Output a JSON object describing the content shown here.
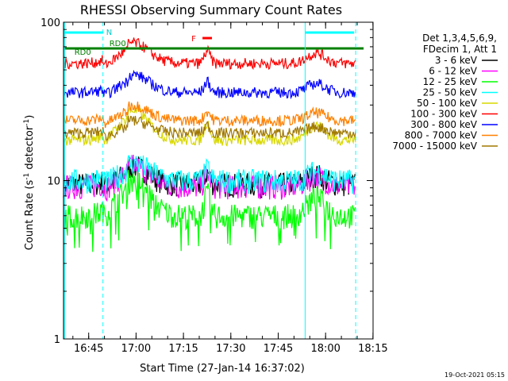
{
  "chart_data": {
    "type": "line",
    "title": "RHESSI Observing Summary Count Rates",
    "xlabel": "Start Time (27-Jan-14 16:37:02)",
    "ylabel_main": "Count Rate (s",
    "ylabel_sup1": "-1",
    "ylabel_mid": " detector",
    "ylabel_sup2": "-1",
    "ylabel_end": ")",
    "footer_timestamp": "19-Oct-2021 05:15",
    "y_scale": "log",
    "ylim": [
      1,
      100
    ],
    "xlim_minutes": [
      0,
      98
    ],
    "x_ticks": [
      {
        "label": "16:45",
        "min": 7.97
      },
      {
        "label": "17:00",
        "min": 22.97
      },
      {
        "label": "17:15",
        "min": 37.97
      },
      {
        "label": "17:30",
        "min": 52.97
      },
      {
        "label": "17:45",
        "min": 67.97
      },
      {
        "label": "18:00",
        "min": 82.97
      },
      {
        "label": "18:15",
        "min": 97.97
      }
    ],
    "y_ticks": [
      {
        "label": "1",
        "value": 1
      },
      {
        "label": "10",
        "value": 10
      },
      {
        "label": "100",
        "value": 100
      }
    ],
    "legend": {
      "placement": "right",
      "header1": "Det 1,3,4,5,6,9,",
      "header2": "FDecim 1, Att 1"
    },
    "series": [
      {
        "name": "3 - 6 keV",
        "color": "#000000",
        "base": 9.5,
        "peak": 1.3
      },
      {
        "name": "6 - 12 keV",
        "color": "#ff00ff",
        "base": 9.2,
        "peak": 1.35
      },
      {
        "name": "12 - 25 keV",
        "color": "#00ff00",
        "base": 6.0,
        "peak": 1.7
      },
      {
        "name": "25 - 50 keV",
        "color": "#00ffff",
        "base": 10.0,
        "peak": 1.3
      },
      {
        "name": "50 - 100 keV",
        "color": "#d8d800",
        "base": 18.0,
        "peak": 1.55
      },
      {
        "name": "100 - 300 keV",
        "color": "#ff0000",
        "base": 55.0,
        "peak": 1.35
      },
      {
        "name": "300 - 800 keV",
        "color": "#0000ff",
        "base": 36.0,
        "peak": 1.3
      },
      {
        "name": "800 - 7000 keV",
        "color": "#ff8000",
        "base": 24.0,
        "peak": 1.25
      },
      {
        "name": "7000 - 15000 keV",
        "color": "#a07800",
        "base": 20.0,
        "peak": 1.2
      }
    ],
    "annotations": {
      "N_label": "N",
      "N_spans_min": [
        [
          0,
          12.5
        ],
        [
          76.5,
          92
        ]
      ],
      "RD0_label": "RD0",
      "RD0_spans_min": [
        [
          0,
          95
        ]
      ],
      "RD0_label2": "RD0",
      "F_label": "F",
      "F_span_min": [
        44,
        47
      ],
      "eclipse_min": [
        12.5,
        76.5
      ],
      "saa_min": [
        92.5
      ]
    }
  }
}
